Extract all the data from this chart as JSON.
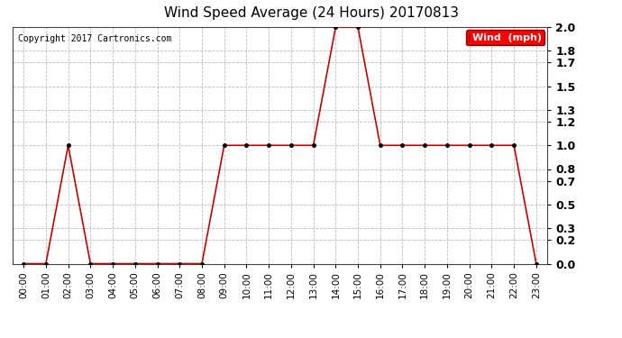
{
  "title": "Wind Speed Average (24 Hours) 20170813",
  "copyright": "Copyright 2017 Cartronics.com",
  "legend_label": "Wind  (mph)",
  "line_color": "#cc0000",
  "background_color": "#ffffff",
  "grid_color": "#bbbbbb",
  "ylim": [
    0.0,
    2.0
  ],
  "yticks": [
    0.0,
    0.2,
    0.3,
    0.5,
    0.7,
    0.8,
    1.0,
    1.2,
    1.3,
    1.5,
    1.7,
    1.8,
    2.0
  ],
  "hours": [
    "00:00",
    "01:00",
    "02:00",
    "03:00",
    "04:00",
    "05:00",
    "06:00",
    "07:00",
    "08:00",
    "09:00",
    "10:00",
    "11:00",
    "12:00",
    "13:00",
    "14:00",
    "15:00",
    "16:00",
    "17:00",
    "18:00",
    "19:00",
    "20:00",
    "21:00",
    "22:00",
    "23:00"
  ],
  "values": [
    0.0,
    0.0,
    1.0,
    0.0,
    0.0,
    0.0,
    0.0,
    0.0,
    0.0,
    1.0,
    1.0,
    1.0,
    1.0,
    1.0,
    2.0,
    2.0,
    1.0,
    1.0,
    1.0,
    1.0,
    1.0,
    1.0,
    1.0,
    0.0
  ]
}
